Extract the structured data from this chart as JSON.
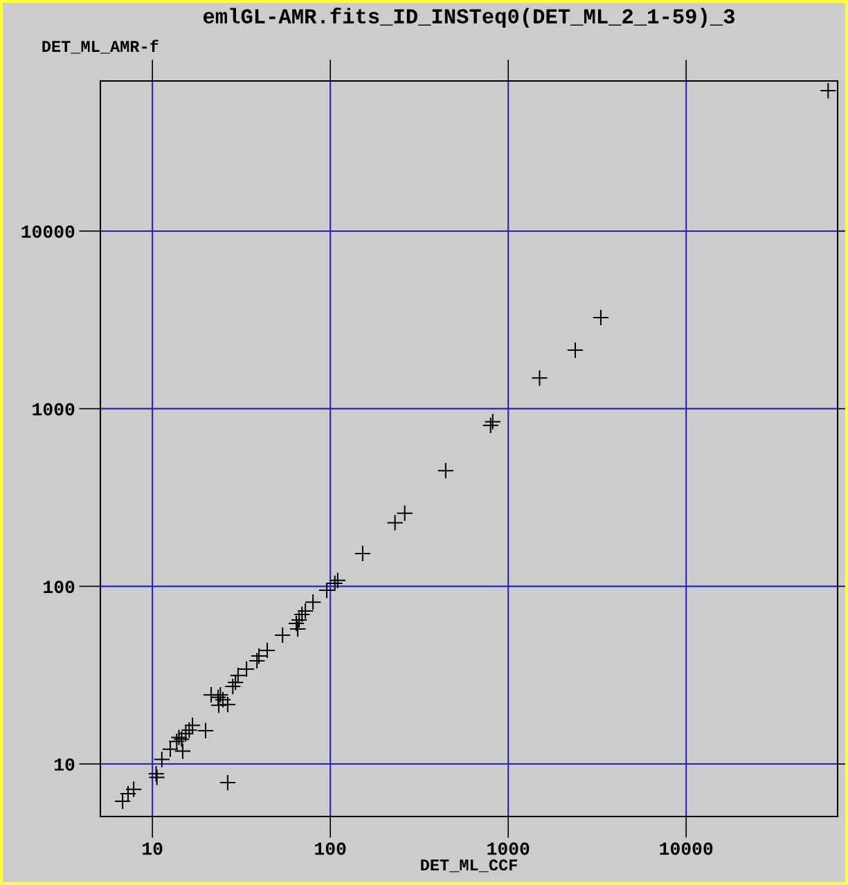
{
  "chart_data": {
    "type": "scatter",
    "title": "emlGL-AMR.fits_ID_INSTeq0(DET_ML_2_1-59)_3",
    "xlabel": "DET_ML_CCF",
    "ylabel": "DET_ML_AMR-f",
    "log": "xy",
    "xlim": [
      5.1,
      71000
    ],
    "ylim": [
      5.06,
      70000
    ],
    "xticks": [
      10,
      100,
      1000,
      10000
    ],
    "yticks": [
      10,
      100,
      1000,
      10000
    ],
    "grid": true,
    "marker": "cross",
    "series": [
      {
        "color": "#000000",
        "x": [
          6.8,
          7.3,
          7.85,
          10.5,
          10.6,
          11.3,
          12.6,
          13.7,
          14.1,
          14.6,
          14.8,
          15.4,
          16.1,
          16.8,
          19.9,
          21.4,
          23.4,
          24.1,
          23.6,
          24.9,
          26.5,
          26.5,
          28.3,
          29.3,
          30.3,
          33.8,
          38.7,
          39.7,
          44.2,
          53.9,
          65.6,
          64.4,
          66.8,
          69.3,
          72.4,
          79.9,
          95.5,
          106,
          110,
          152,
          231,
          262,
          445,
          796,
          818,
          1500,
          2380,
          3315,
          62800
        ],
        "values": [
          6.16,
          6.8,
          7.2,
          8.8,
          8.4,
          10.6,
          12.1,
          13.4,
          14.1,
          13.8,
          11.8,
          14.8,
          15.5,
          16.5,
          15.4,
          24.5,
          23.7,
          24.5,
          21.4,
          23.0,
          21.6,
          7.85,
          27.3,
          28.8,
          31.5,
          34.2,
          38.1,
          40.5,
          43.6,
          53.1,
          57.5,
          61.8,
          64.7,
          69.5,
          72.6,
          81.5,
          95,
          104,
          108,
          153,
          228,
          258,
          448,
          805,
          845,
          1488,
          2136,
          3260,
          61700
        ]
      }
    ]
  }
}
